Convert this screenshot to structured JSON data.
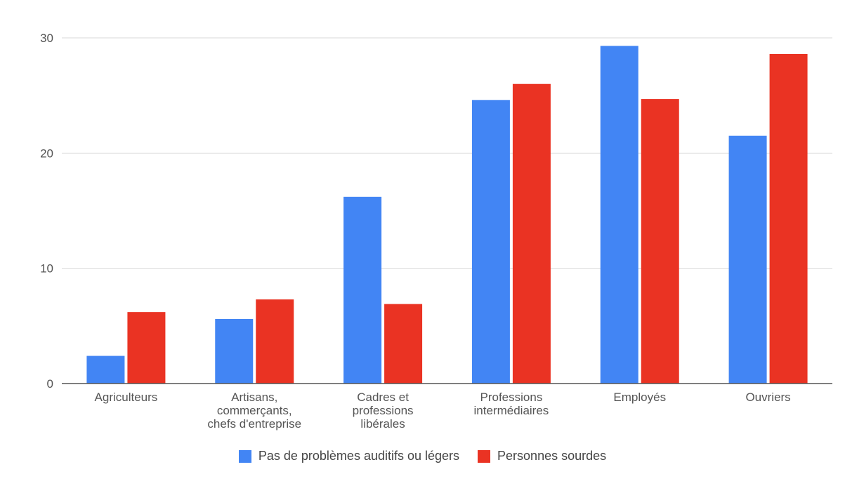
{
  "colors": {
    "series_0": "#4285F4",
    "series_1": "#EA3323",
    "grid": "#DADADA",
    "axis": "#555555",
    "text": "#555555"
  },
  "chart_data": {
    "type": "bar",
    "title": "",
    "xlabel": "",
    "ylabel": "",
    "ylim": [
      0,
      30
    ],
    "yticks": [
      0,
      10,
      20,
      30
    ],
    "grid": true,
    "legend_position": "bottom",
    "categories": [
      [
        "Agriculteurs"
      ],
      [
        "Artisans,",
        "commerçants,",
        "chefs d'entreprise"
      ],
      [
        "Cadres et",
        "professions",
        "libérales"
      ],
      [
        "Professions",
        "intermédiaires"
      ],
      [
        "Employés"
      ],
      [
        "Ouvriers"
      ]
    ],
    "series": [
      {
        "name": "Pas de problèmes auditifs ou légers",
        "values": [
          2.4,
          5.6,
          16.2,
          24.6,
          29.3,
          21.5
        ]
      },
      {
        "name": "Personnes sourdes",
        "values": [
          6.2,
          7.3,
          6.9,
          26.0,
          24.7,
          28.6
        ]
      }
    ]
  }
}
